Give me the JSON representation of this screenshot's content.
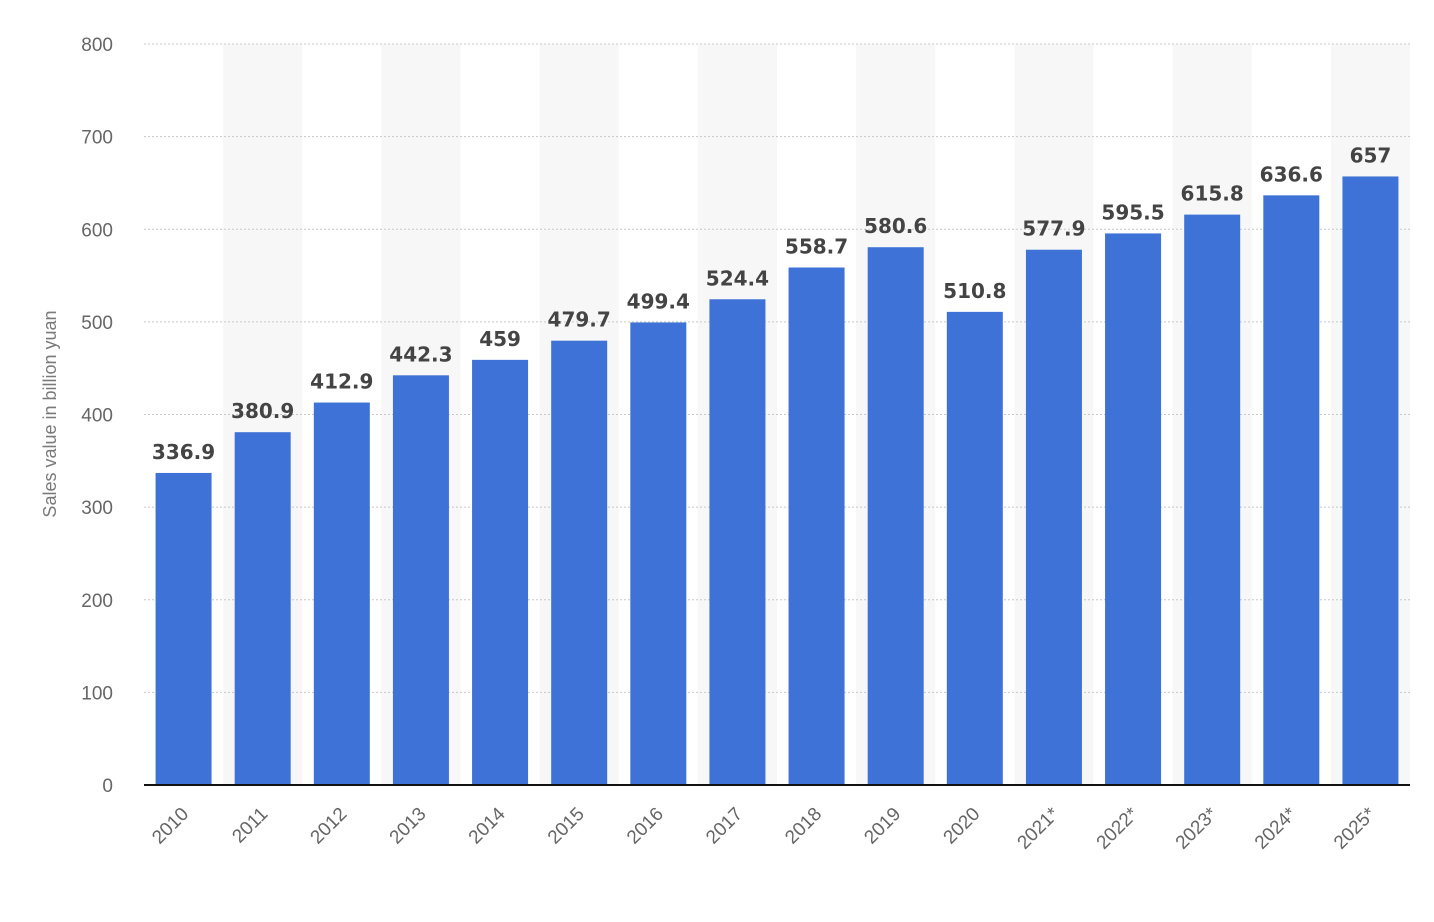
{
  "chart_data": {
    "type": "bar",
    "title": "",
    "xlabel": "",
    "ylabel": "Sales value in billion yuan",
    "ylim": [
      0,
      800
    ],
    "yticks": [
      0,
      100,
      200,
      300,
      400,
      500,
      600,
      700,
      800
    ],
    "grid": true,
    "legend": "none",
    "categories": [
      "2010",
      "2011",
      "2012",
      "2013",
      "2014",
      "2015",
      "2016",
      "2017",
      "2018",
      "2019",
      "2020",
      "2021*",
      "2022*",
      "2023*",
      "2024*",
      "2025*"
    ],
    "values": [
      336.9,
      380.9,
      412.9,
      442.3,
      459,
      479.7,
      499.4,
      524.4,
      558.7,
      580.6,
      510.8,
      577.9,
      595.5,
      615.8,
      636.6,
      657
    ],
    "value_labels": [
      "336.9",
      "380.9",
      "412.9",
      "442.3",
      "459",
      "479.7",
      "499.4",
      "524.4",
      "558.7",
      "580.6",
      "510.8",
      "577.9",
      "595.5",
      "615.8",
      "636.6",
      "657"
    ],
    "colors": {
      "bar": "#3e72d6",
      "band": "#f7f7f7",
      "grid": "#c8c8c8",
      "baseline": "#111111"
    }
  }
}
